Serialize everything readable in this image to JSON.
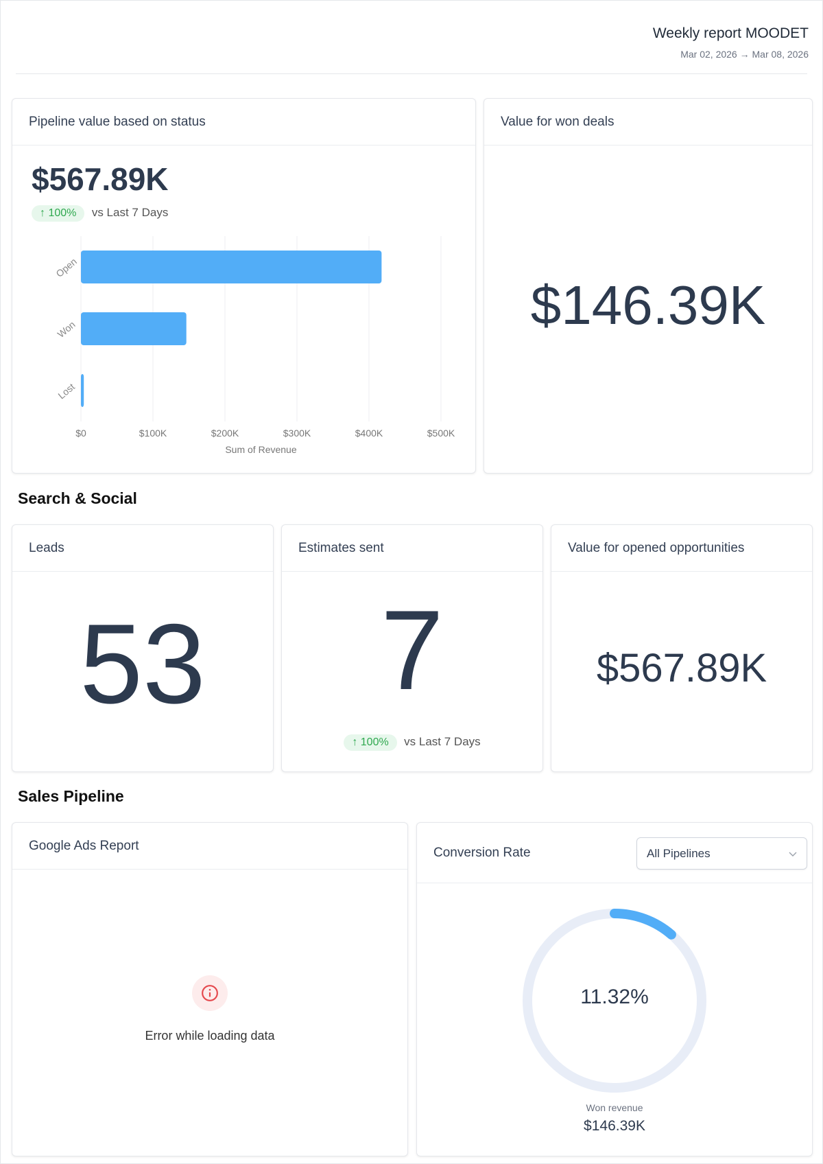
{
  "header": {
    "title": "Weekly report MOODET",
    "date_range": "Mar 02, 2026 → Mar 08, 2026"
  },
  "pipeline_card": {
    "title": "Pipeline value based on status",
    "value": "$567.89K",
    "change": "↑ 100%",
    "change_label": "vs Last 7 Days"
  },
  "won_card": {
    "title": "Value for won deals",
    "value": "$146.39K"
  },
  "sections": {
    "search_social": "Search & Social",
    "sales_pipeline": "Sales Pipeline"
  },
  "leads_card": {
    "title": "Leads",
    "value": "53"
  },
  "estimates_card": {
    "title": "Estimates sent",
    "value": "7",
    "change": "↑ 100%",
    "change_label": "vs Last 7 Days"
  },
  "opened_card": {
    "title": "Value for opened opportunities",
    "value": "$567.89K"
  },
  "google_ads_card": {
    "title": "Google Ads Report",
    "error": "Error while loading data"
  },
  "conversion_card": {
    "title": "Conversion Rate",
    "select": "All Pipelines",
    "percent_label": "11.32%",
    "percent": 11.32,
    "sub_label": "Won revenue",
    "sub_value": "$146.39K"
  },
  "colors": {
    "bar": "#52adf7",
    "track": "#e8edf7",
    "accent": "#2fa84f",
    "error": "#e5484d"
  },
  "chart_data": {
    "type": "bar",
    "orientation": "horizontal",
    "categories": [
      "Open",
      "Won",
      "Lost"
    ],
    "values": [
      417.5,
      146.39,
      4
    ],
    "xlabel": "Sum of Revenue",
    "ylabel": "",
    "xlim": [
      0,
      500
    ],
    "ticks": [
      "$0",
      "$100K",
      "$200K",
      "$300K",
      "$400K",
      "$500K"
    ],
    "grid": true
  }
}
